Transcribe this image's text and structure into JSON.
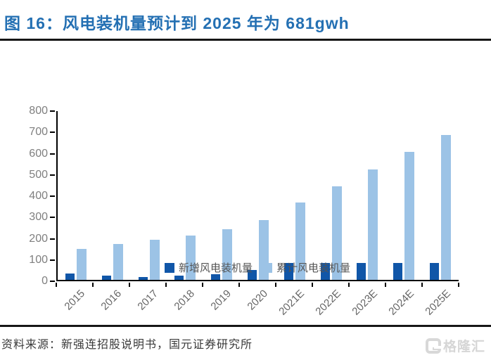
{
  "header": {
    "title": "图 16：风电装机量预计到 2025 年为 681gwh"
  },
  "chart_data": {
    "type": "bar",
    "title": "风电装机量预计到 2025 年为 681gwh",
    "categories": [
      "2015",
      "2016",
      "2017",
      "2018",
      "2019",
      "2020",
      "2021E",
      "2022E",
      "2023E",
      "2024E",
      "2025E"
    ],
    "series": [
      {
        "name": "新增风电装机量",
        "color": "#1056a8",
        "values": [
          31,
          19,
          15,
          21,
          27,
          45,
          80,
          80,
          80,
          80,
          80
        ]
      },
      {
        "name": "累计风电装机量",
        "color": "#9cc3e6",
        "values": [
          145,
          169,
          188,
          210,
          237,
          282,
          363,
          440,
          520,
          601,
          681
        ]
      }
    ],
    "xlabel": "",
    "ylabel": "",
    "ylim": [
      0,
      800
    ],
    "y_ticks": [
      0,
      100,
      200,
      300,
      400,
      500,
      600,
      700,
      800
    ],
    "grid": false,
    "legend_position": "bottom"
  },
  "footer": {
    "source": "资料来源：新强连招股说明书，国元证券研究所"
  },
  "watermark": {
    "label": "格隆汇"
  },
  "colors": {
    "title_blue": "#2470b3",
    "dark_bar": "#1056a8",
    "light_bar": "#9cc3e6",
    "axis": "#000000",
    "tick_text": "#7f7f7f",
    "rule": "#161616"
  }
}
